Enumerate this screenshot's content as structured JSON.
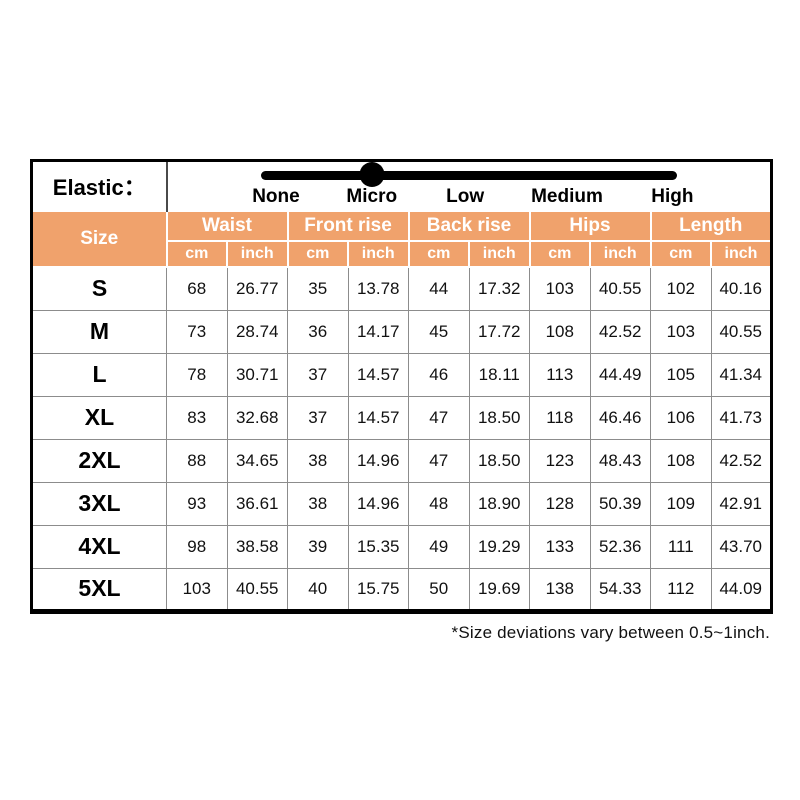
{
  "elastic": {
    "label": "Elastic：",
    "levels": [
      "None",
      "Micro",
      "Low",
      "Medium",
      "High"
    ],
    "selected_level": "Micro",
    "selected_index": 1,
    "slider_color": "#000000"
  },
  "table": {
    "size_header": "Size",
    "groups": [
      "Waist",
      "Front rise",
      "Back rise",
      "Hips",
      "Length"
    ],
    "units": [
      "cm",
      "inch"
    ],
    "header_bg": "#F0A26C",
    "header_text_color": "#FFFFFF"
  },
  "chart_data": {
    "type": "table",
    "columns": [
      "Size",
      "Waist (cm)",
      "Waist (inch)",
      "Front rise (cm)",
      "Front rise (inch)",
      "Back rise (cm)",
      "Back rise (inch)",
      "Hips (cm)",
      "Hips (inch)",
      "Length (cm)",
      "Length (inch)"
    ],
    "rows": [
      [
        "S",
        "68",
        "26.77",
        "35",
        "13.78",
        "44",
        "17.32",
        "103",
        "40.55",
        "102",
        "40.16"
      ],
      [
        "M",
        "73",
        "28.74",
        "36",
        "14.17",
        "45",
        "17.72",
        "108",
        "42.52",
        "103",
        "40.55"
      ],
      [
        "L",
        "78",
        "30.71",
        "37",
        "14.57",
        "46",
        "18.11",
        "113",
        "44.49",
        "105",
        "41.34"
      ],
      [
        "XL",
        "83",
        "32.68",
        "37",
        "14.57",
        "47",
        "18.50",
        "118",
        "46.46",
        "106",
        "41.73"
      ],
      [
        "2XL",
        "88",
        "34.65",
        "38",
        "14.96",
        "47",
        "18.50",
        "123",
        "48.43",
        "108",
        "42.52"
      ],
      [
        "3XL",
        "93",
        "36.61",
        "38",
        "14.96",
        "48",
        "18.90",
        "128",
        "50.39",
        "109",
        "42.91"
      ],
      [
        "4XL",
        "98",
        "38.58",
        "39",
        "15.35",
        "49",
        "19.29",
        "133",
        "52.36",
        "111",
        "43.70"
      ],
      [
        "5XL",
        "103",
        "40.55",
        "40",
        "15.75",
        "50",
        "19.69",
        "138",
        "54.33",
        "112",
        "44.09"
      ]
    ]
  },
  "footnote": "*Size deviations vary between 0.5~1inch."
}
